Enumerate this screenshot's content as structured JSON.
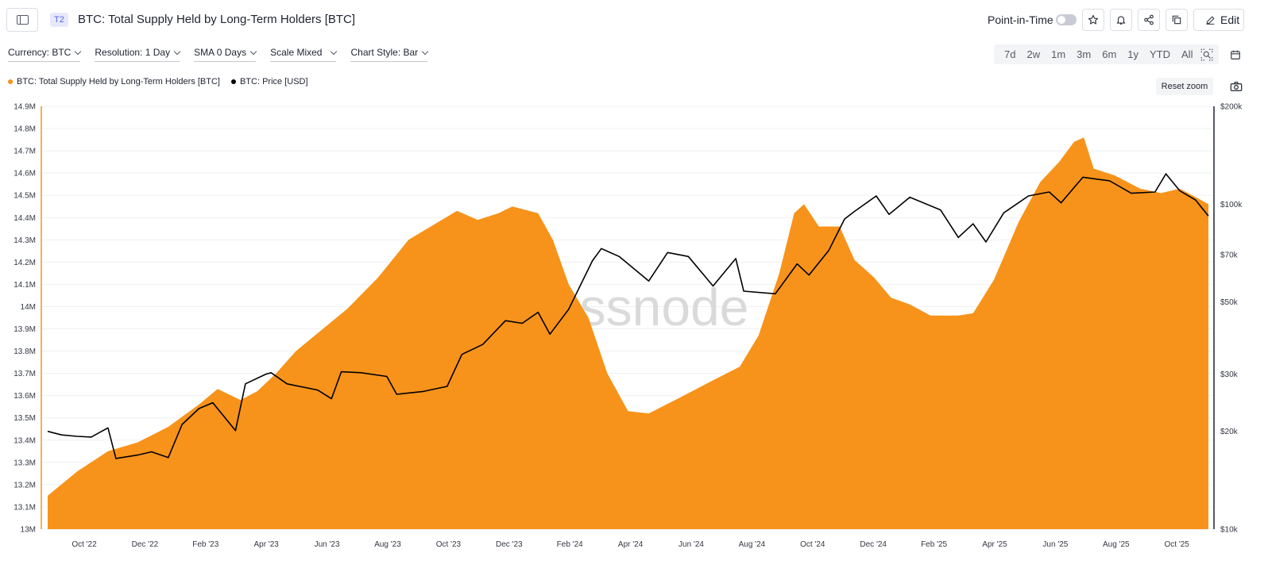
{
  "header": {
    "tier_badge": "T2",
    "title": "BTC: Total Supply Held by Long-Term Holders [BTC]",
    "point_in_time_label": "Point-in-Time",
    "edit_label": "Edit"
  },
  "toolbar": {
    "currency": "Currency: BTC",
    "resolution": "Resolution: 1 Day",
    "sma": "SMA 0 Days",
    "scale": "Scale Mixed",
    "chart_style": "Chart Style: Bar"
  },
  "ranges": [
    "7d",
    "2w",
    "1m",
    "3m",
    "6m",
    "1y",
    "YTD",
    "All"
  ],
  "legend": {
    "series_1": "BTC: Total Supply Held by Long-Term Holders [BTC]",
    "series_2": "BTC: Price [USD]"
  },
  "reset_zoom_label": "Reset zoom",
  "watermark": "glassnode",
  "colors": {
    "supply": "#f7931a",
    "price": "#000000",
    "accent": "#5b6bd6"
  },
  "chart_data": {
    "type": "area",
    "x_tick_labels": [
      "Oct '22",
      "Dec '22",
      "Feb '23",
      "Apr '23",
      "Jun '23",
      "Aug '23",
      "Oct '23",
      "Dec '23",
      "Feb '24",
      "Apr '24",
      "Jun '24",
      "Aug '24",
      "Oct '24",
      "Dec '24",
      "Feb '25",
      "Apr '25",
      "Jun '25",
      "Aug '25",
      "Oct '25"
    ],
    "y_left": {
      "ticks": [
        "13M",
        "13.1M",
        "13.2M",
        "13.3M",
        "13.4M",
        "13.5M",
        "13.6M",
        "13.7M",
        "13.8M",
        "13.9M",
        "14M",
        "14.1M",
        "14.2M",
        "14.3M",
        "14.4M",
        "14.5M",
        "14.6M",
        "14.7M",
        "14.8M",
        "14.9M"
      ],
      "min": 13000000,
      "max": 14900000
    },
    "y_right": {
      "scale": "log",
      "ticks": [
        {
          "label": "$10k",
          "value": 10000
        },
        {
          "label": "$20k",
          "value": 20000
        },
        {
          "label": "$30k",
          "value": 30000
        },
        {
          "label": "$50k",
          "value": 50000
        },
        {
          "label": "$70k",
          "value": 70000
        },
        {
          "label": "$100k",
          "value": 100000
        },
        {
          "label": "$200k",
          "value": 200000
        }
      ],
      "min": 10000,
      "max": 200000
    },
    "x_range": [
      "2022-09-01",
      "2025-11-18"
    ],
    "series": [
      {
        "name": "BTC: Total Supply Held by Long-Term Holders [BTC]",
        "axis": "left",
        "style": "area",
        "points": [
          [
            "2022-09-01",
            13150000
          ],
          [
            "2022-10-01",
            13260000
          ],
          [
            "2022-11-01",
            13350000
          ],
          [
            "2022-12-01",
            13390000
          ],
          [
            "2023-01-01",
            13460000
          ],
          [
            "2023-02-01",
            13560000
          ],
          [
            "2023-02-20",
            13630000
          ],
          [
            "2023-03-15",
            13580000
          ],
          [
            "2023-04-01",
            13620000
          ],
          [
            "2023-04-20",
            13700000
          ],
          [
            "2023-05-10",
            13800000
          ],
          [
            "2023-06-01",
            13880000
          ],
          [
            "2023-07-01",
            13990000
          ],
          [
            "2023-08-01",
            14130000
          ],
          [
            "2023-09-01",
            14300000
          ],
          [
            "2023-10-01",
            14380000
          ],
          [
            "2023-10-20",
            14430000
          ],
          [
            "2023-11-10",
            14390000
          ],
          [
            "2023-12-01",
            14420000
          ],
          [
            "2023-12-15",
            14450000
          ],
          [
            "2024-01-10",
            14420000
          ],
          [
            "2024-01-25",
            14300000
          ],
          [
            "2024-02-10",
            14100000
          ],
          [
            "2024-03-01",
            13950000
          ],
          [
            "2024-03-20",
            13700000
          ],
          [
            "2024-04-10",
            13530000
          ],
          [
            "2024-05-01",
            13520000
          ],
          [
            "2024-06-01",
            13590000
          ],
          [
            "2024-07-01",
            13660000
          ],
          [
            "2024-08-01",
            13730000
          ],
          [
            "2024-08-20",
            13870000
          ],
          [
            "2024-09-10",
            14150000
          ],
          [
            "2024-09-25",
            14420000
          ],
          [
            "2024-10-05",
            14460000
          ],
          [
            "2024-10-20",
            14360000
          ],
          [
            "2024-11-10",
            14360000
          ],
          [
            "2024-11-25",
            14210000
          ],
          [
            "2024-12-15",
            14130000
          ],
          [
            "2025-01-01",
            14040000
          ],
          [
            "2025-01-20",
            14010000
          ],
          [
            "2025-02-10",
            13960000
          ],
          [
            "2025-03-10",
            13960000
          ],
          [
            "2025-03-25",
            13970000
          ],
          [
            "2025-04-15",
            14120000
          ],
          [
            "2025-05-10",
            14380000
          ],
          [
            "2025-06-01",
            14560000
          ],
          [
            "2025-06-20",
            14650000
          ],
          [
            "2025-07-05",
            14740000
          ],
          [
            "2025-07-15",
            14760000
          ],
          [
            "2025-07-25",
            14620000
          ],
          [
            "2025-08-15",
            14590000
          ],
          [
            "2025-09-10",
            14530000
          ],
          [
            "2025-10-01",
            14510000
          ],
          [
            "2025-10-20",
            14530000
          ],
          [
            "2025-11-10",
            14480000
          ],
          [
            "2025-11-18",
            14460000
          ]
        ]
      },
      {
        "name": "BTC: Price [USD]",
        "axis": "right",
        "style": "line",
        "points": [
          [
            "2022-09-01",
            20000
          ],
          [
            "2022-09-15",
            19500
          ],
          [
            "2022-10-01",
            19300
          ],
          [
            "2022-10-15",
            19200
          ],
          [
            "2022-11-01",
            20500
          ],
          [
            "2022-11-09",
            16500
          ],
          [
            "2022-12-01",
            16900
          ],
          [
            "2022-12-15",
            17300
          ],
          [
            "2023-01-01",
            16600
          ],
          [
            "2023-01-15",
            21000
          ],
          [
            "2023-02-01",
            23500
          ],
          [
            "2023-02-15",
            24500
          ],
          [
            "2023-03-10",
            20100
          ],
          [
            "2023-03-20",
            28000
          ],
          [
            "2023-04-10",
            30000
          ],
          [
            "2023-04-15",
            30300
          ],
          [
            "2023-05-01",
            28000
          ],
          [
            "2023-06-01",
            26800
          ],
          [
            "2023-06-15",
            25200
          ],
          [
            "2023-06-25",
            30500
          ],
          [
            "2023-07-15",
            30300
          ],
          [
            "2023-08-10",
            29500
          ],
          [
            "2023-08-20",
            26000
          ],
          [
            "2023-09-15",
            26500
          ],
          [
            "2023-10-10",
            27500
          ],
          [
            "2023-10-25",
            34500
          ],
          [
            "2023-11-15",
            37000
          ],
          [
            "2023-12-08",
            43800
          ],
          [
            "2023-12-25",
            43000
          ],
          [
            "2024-01-10",
            46500
          ],
          [
            "2024-01-22",
            39800
          ],
          [
            "2024-02-10",
            47500
          ],
          [
            "2024-03-05",
            67000
          ],
          [
            "2024-03-14",
            73000
          ],
          [
            "2024-04-01",
            69000
          ],
          [
            "2024-05-01",
            58000
          ],
          [
            "2024-05-20",
            71000
          ],
          [
            "2024-06-10",
            69000
          ],
          [
            "2024-07-05",
            56000
          ],
          [
            "2024-07-28",
            68000
          ],
          [
            "2024-08-05",
            54000
          ],
          [
            "2024-09-06",
            53000
          ],
          [
            "2024-09-28",
            65500
          ],
          [
            "2024-10-10",
            60500
          ],
          [
            "2024-10-30",
            72000
          ],
          [
            "2024-11-15",
            90000
          ],
          [
            "2024-11-25",
            95000
          ],
          [
            "2024-12-17",
            106000
          ],
          [
            "2024-12-30",
            93000
          ],
          [
            "2025-01-20",
            105000
          ],
          [
            "2025-02-20",
            96000
          ],
          [
            "2025-03-10",
            79000
          ],
          [
            "2025-03-25",
            87000
          ],
          [
            "2025-04-07",
            76500
          ],
          [
            "2025-04-25",
            94000
          ],
          [
            "2025-05-20",
            106000
          ],
          [
            "2025-06-10",
            109000
          ],
          [
            "2025-06-22",
            101000
          ],
          [
            "2025-07-14",
            121000
          ],
          [
            "2025-08-10",
            118000
          ],
          [
            "2025-09-01",
            108000
          ],
          [
            "2025-09-25",
            109000
          ],
          [
            "2025-10-06",
            124000
          ],
          [
            "2025-10-20",
            110000
          ],
          [
            "2025-11-05",
            103000
          ],
          [
            "2025-11-18",
            92000
          ]
        ]
      }
    ],
    "grid": true,
    "legend_position": "top-left"
  }
}
